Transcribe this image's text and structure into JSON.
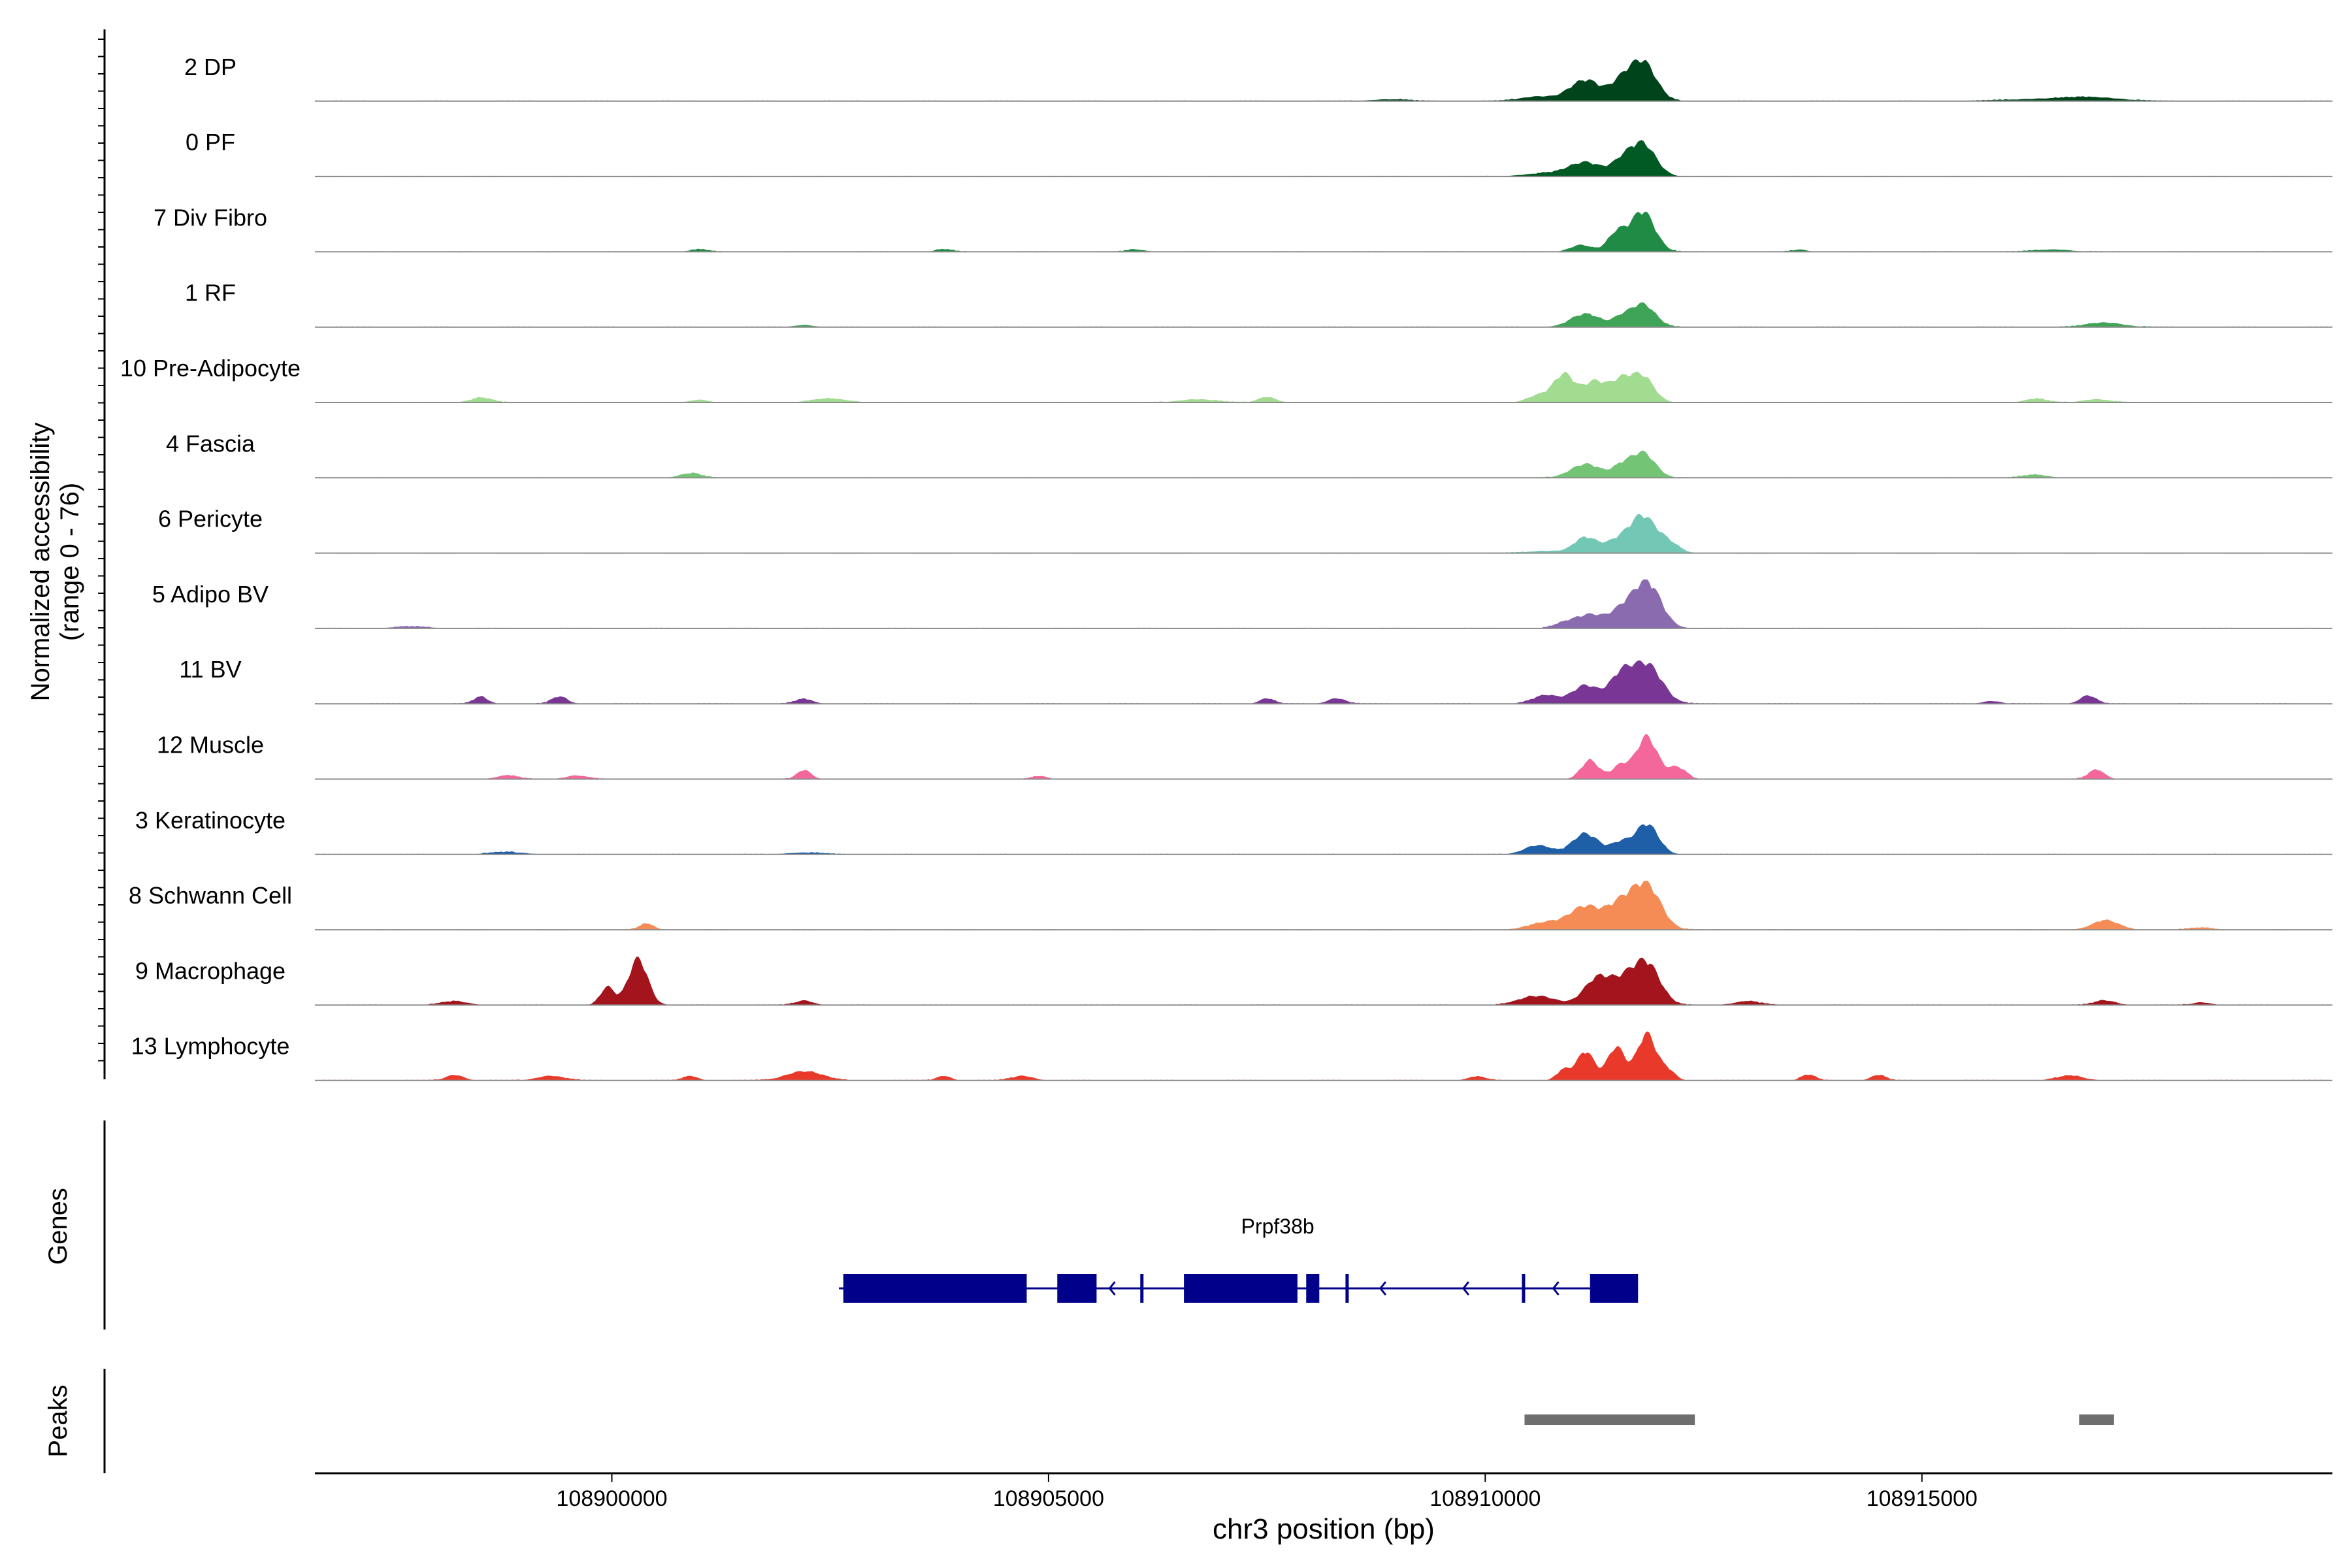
{
  "chart_data": {
    "type": "area",
    "ylabel": "Normalized accessibility",
    "ylabel_range": "(range 0 - 76)",
    "y_range": [
      0,
      76
    ],
    "xlabel": "chr3 position (bp)",
    "x_range": [
      108896600,
      108919700
    ],
    "x_ticks": [
      108900000,
      108905000,
      108910000,
      108915000
    ],
    "x_tick_labels": [
      "108900000",
      "108905000",
      "108910000",
      "108915000"
    ],
    "tracks": [
      {
        "name": "2 DP",
        "color": "#00441b",
        "peaks": [
          [
            108911150,
            0.45,
            180
          ],
          [
            108911550,
            0.33,
            120
          ],
          [
            108911800,
            0.85,
            150
          ],
          [
            108910600,
            0.1,
            200
          ],
          [
            108908900,
            0.04,
            200
          ],
          [
            108916400,
            0.05,
            400
          ],
          [
            108917000,
            0.07,
            300
          ]
        ]
      },
      {
        "name": "0 PF",
        "color": "#005a24",
        "peaks": [
          [
            108911150,
            0.3,
            180
          ],
          [
            108911550,
            0.25,
            120
          ],
          [
            108911800,
            0.7,
            150
          ],
          [
            108910700,
            0.07,
            250
          ]
        ]
      },
      {
        "name": "7 Div Fibro",
        "color": "#1f8b45",
        "peaks": [
          [
            108911100,
            0.15,
            120
          ],
          [
            108911500,
            0.38,
            100
          ],
          [
            108911800,
            0.88,
            140
          ],
          [
            108901000,
            0.05,
            100
          ],
          [
            108903800,
            0.05,
            100
          ],
          [
            108906000,
            0.05,
            100
          ],
          [
            108913600,
            0.05,
            80
          ],
          [
            108916500,
            0.05,
            200
          ]
        ]
      },
      {
        "name": "1 RF",
        "color": "#3fa457",
        "peaks": [
          [
            108911150,
            0.28,
            170
          ],
          [
            108911550,
            0.17,
            100
          ],
          [
            108911800,
            0.5,
            140
          ],
          [
            108902200,
            0.05,
            100
          ],
          [
            108917100,
            0.1,
            200
          ]
        ]
      },
      {
        "name": "10 Pre-Adipocyte",
        "color": "#a1dc91",
        "peaks": [
          [
            108910900,
            0.6,
            120
          ],
          [
            108911250,
            0.45,
            130
          ],
          [
            108911550,
            0.44,
            120
          ],
          [
            108911800,
            0.55,
            130
          ],
          [
            108910600,
            0.15,
            120
          ],
          [
            108898500,
            0.1,
            120
          ],
          [
            108901000,
            0.06,
            100
          ],
          [
            108902500,
            0.08,
            200
          ],
          [
            108906700,
            0.07,
            200
          ],
          [
            108907500,
            0.12,
            100
          ],
          [
            108916300,
            0.08,
            120
          ],
          [
            108917000,
            0.07,
            150
          ]
        ]
      },
      {
        "name": "4 Fascia",
        "color": "#74c476",
        "peaks": [
          [
            108911150,
            0.3,
            170
          ],
          [
            108911550,
            0.2,
            100
          ],
          [
            108911800,
            0.55,
            140
          ],
          [
            108900900,
            0.1,
            120
          ],
          [
            108916300,
            0.06,
            150
          ]
        ]
      },
      {
        "name": "6 Pericyte",
        "color": "#73c8b5",
        "peaks": [
          [
            108911150,
            0.33,
            130
          ],
          [
            108911500,
            0.24,
            130
          ],
          [
            108911800,
            0.8,
            150
          ],
          [
            108912100,
            0.2,
            120
          ],
          [
            108910700,
            0.05,
            200
          ]
        ]
      },
      {
        "name": "5 Adipo BV",
        "color": "#8b6bb0",
        "peaks": [
          [
            108911200,
            0.3,
            160
          ],
          [
            108911550,
            0.33,
            130
          ],
          [
            108911850,
            1.0,
            160
          ],
          [
            108910900,
            0.1,
            120
          ],
          [
            108897700,
            0.04,
            200
          ]
        ]
      },
      {
        "name": "11 BV",
        "color": "#7a3695",
        "peaks": [
          [
            108911150,
            0.4,
            150
          ],
          [
            108911550,
            0.55,
            130
          ],
          [
            108911850,
            0.85,
            170
          ],
          [
            108910700,
            0.18,
            150
          ],
          [
            108898500,
            0.15,
            80
          ],
          [
            108899400,
            0.15,
            90
          ],
          [
            108902200,
            0.1,
            100
          ],
          [
            108907500,
            0.12,
            80
          ],
          [
            108908300,
            0.12,
            100
          ],
          [
            108915800,
            0.06,
            100
          ],
          [
            108916900,
            0.18,
            90
          ]
        ]
      },
      {
        "name": "12 Muscle",
        "color": "#f4679a",
        "peaks": [
          [
            108911200,
            0.4,
            100
          ],
          [
            108911550,
            0.3,
            100
          ],
          [
            108911850,
            0.92,
            120
          ],
          [
            108912200,
            0.25,
            100
          ],
          [
            108902200,
            0.2,
            80
          ],
          [
            108904900,
            0.07,
            80
          ],
          [
            108898800,
            0.08,
            120
          ],
          [
            108899600,
            0.08,
            120
          ],
          [
            108917000,
            0.2,
            90
          ]
        ]
      },
      {
        "name": "3 Keratinocyte",
        "color": "#1f5fa8",
        "peaks": [
          [
            108911150,
            0.45,
            150
          ],
          [
            108911550,
            0.25,
            110
          ],
          [
            108911850,
            0.65,
            130
          ],
          [
            108910600,
            0.2,
            150
          ],
          [
            108898800,
            0.05,
            200
          ],
          [
            108902200,
            0.04,
            200
          ]
        ]
      },
      {
        "name": "8 Schwann Cell",
        "color": "#f58c55",
        "peaks": [
          [
            108911150,
            0.5,
            180
          ],
          [
            108911550,
            0.5,
            150
          ],
          [
            108911850,
            0.95,
            160
          ],
          [
            108910700,
            0.15,
            200
          ],
          [
            108900400,
            0.13,
            80
          ],
          [
            108917100,
            0.2,
            150
          ],
          [
            108918200,
            0.04,
            150
          ]
        ]
      },
      {
        "name": "9 Macrophage",
        "color": "#a3141c",
        "peaks": [
          [
            108900300,
            1.0,
            110
          ],
          [
            108899950,
            0.38,
            80
          ],
          [
            108911300,
            0.6,
            160
          ],
          [
            108911600,
            0.4,
            130
          ],
          [
            108911850,
            0.9,
            150
          ],
          [
            108910600,
            0.2,
            200
          ],
          [
            108898200,
            0.08,
            150
          ],
          [
            108902200,
            0.1,
            100
          ],
          [
            108913000,
            0.08,
            150
          ],
          [
            108917100,
            0.1,
            120
          ],
          [
            108918200,
            0.06,
            100
          ]
        ]
      },
      {
        "name": "13 Lymphocyte",
        "color": "#e9392b",
        "peaks": [
          [
            108911150,
            0.62,
            100
          ],
          [
            108911500,
            0.72,
            100
          ],
          [
            108911850,
            1.0,
            110
          ],
          [
            108910900,
            0.22,
            80
          ],
          [
            108912100,
            0.2,
            80
          ],
          [
            108898200,
            0.12,
            100
          ],
          [
            108899300,
            0.1,
            150
          ],
          [
            108900900,
            0.1,
            80
          ],
          [
            108902200,
            0.2,
            200
          ],
          [
            108903800,
            0.1,
            80
          ],
          [
            108904700,
            0.1,
            120
          ],
          [
            108909900,
            0.08,
            100
          ],
          [
            108913700,
            0.12,
            80
          ],
          [
            108914500,
            0.12,
            80
          ],
          [
            108916700,
            0.1,
            150
          ]
        ]
      }
    ],
    "genes_label": "Genes",
    "gene": {
      "name": "Prpf38b",
      "color": "#00008b",
      "start": 108902600,
      "end": 108911750,
      "exons": [
        [
          108902650,
          108904750
        ],
        [
          108905100,
          108905550
        ],
        [
          108906050,
          108906080
        ],
        [
          108906550,
          108907850
        ],
        [
          108907950,
          108908100
        ],
        [
          108908400,
          108908430
        ],
        [
          108910420,
          108910450
        ],
        [
          108911200,
          108911750
        ]
      ],
      "arrows": [
        108905700,
        108908800,
        108909750,
        108910780
      ]
    },
    "peaks_label": "Peaks",
    "peak_regions": [
      [
        108910450,
        108912400
      ],
      [
        108916800,
        108917200
      ]
    ]
  }
}
